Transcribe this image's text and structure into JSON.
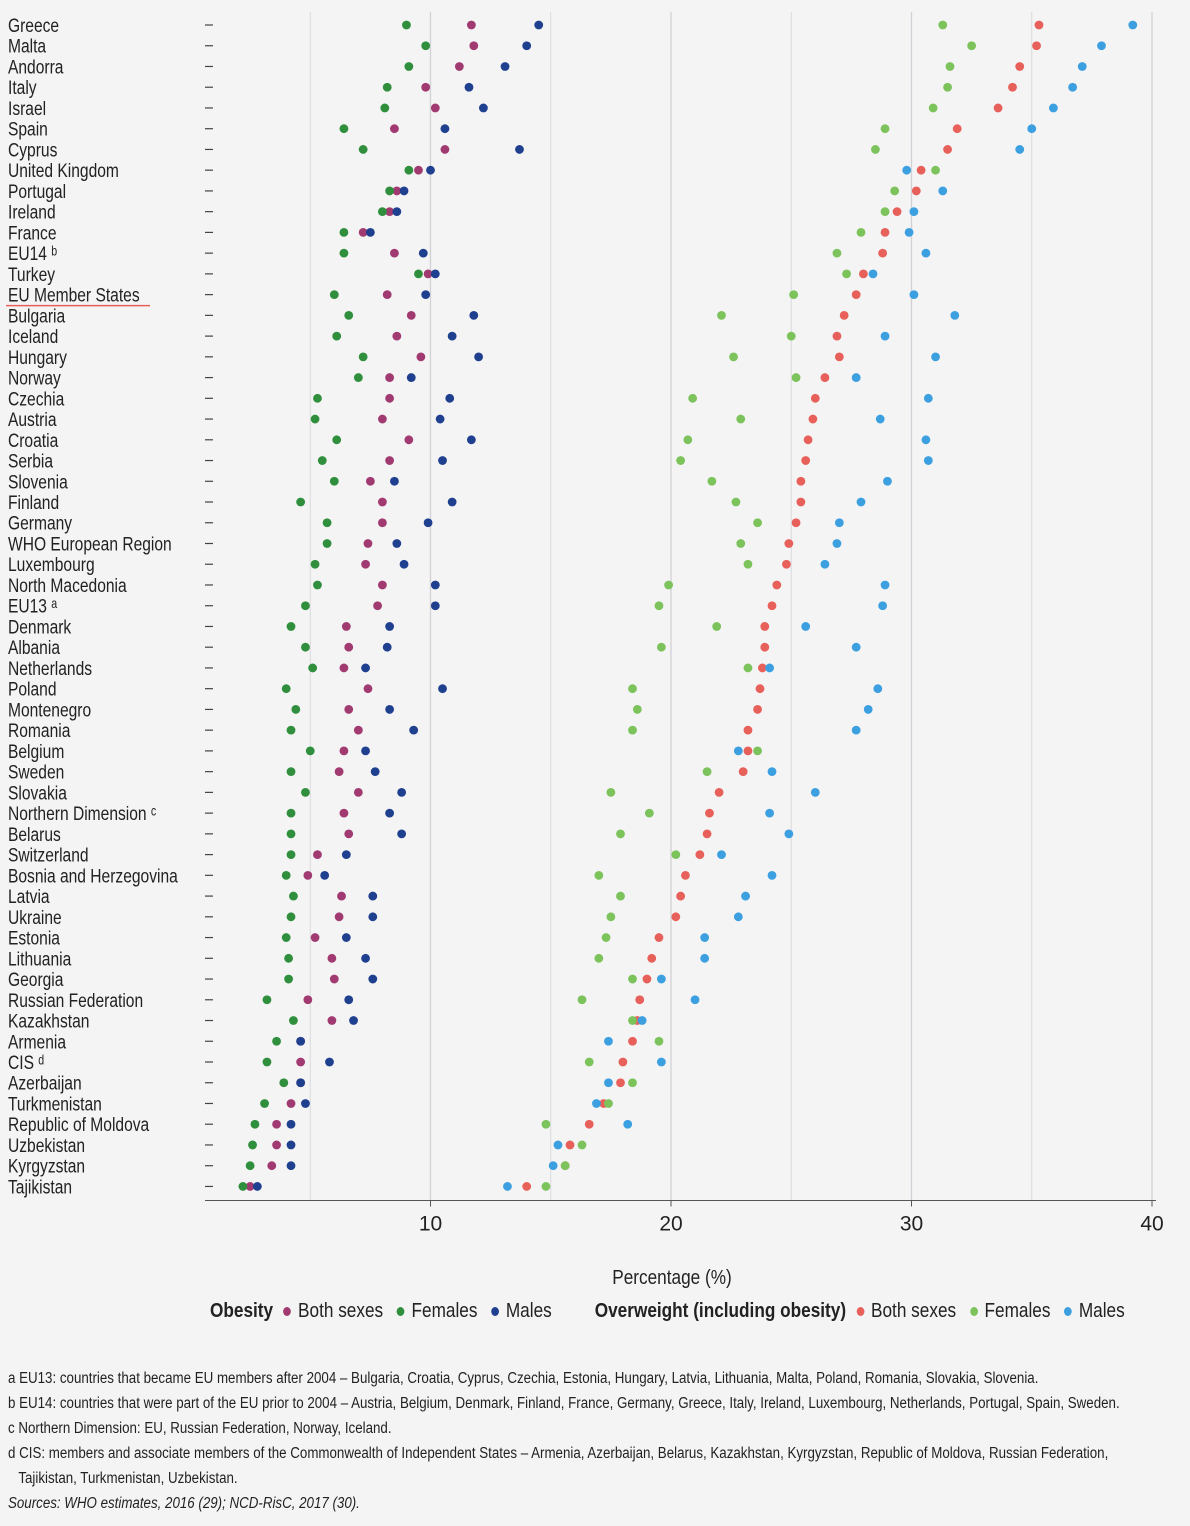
{
  "chart_data": {
    "type": "scatter",
    "xlabel": "Percentage (%)",
    "xlim": [
      0,
      40
    ],
    "xticks": [
      10,
      20,
      30,
      40
    ],
    "grid": true,
    "legend_position": "bottom",
    "countries": [
      "Greece",
      "Malta",
      "Andorra",
      "Italy",
      "Israel",
      "Spain",
      "Cyprus",
      "United Kingdom",
      "Portugal",
      "Ireland",
      "France",
      "EU14 ᵇ",
      "Turkey",
      "EU Member States",
      "Bulgaria",
      "Iceland",
      "Hungary",
      "Norway",
      "Czechia",
      "Austria",
      "Croatia",
      "Serbia",
      "Slovenia",
      "Finland",
      "Germany",
      "WHO European Region",
      "Luxembourg",
      "North Macedonia",
      "EU13 ᵃ",
      "Denmark",
      "Albania",
      "Netherlands",
      "Poland",
      "Montenegro",
      "Romania",
      "Belgium",
      "Sweden",
      "Slovakia",
      "Northern Dimension ᶜ",
      "Belarus",
      "Switzerland",
      "Bosnia and Herzegovina",
      "Latvia",
      "Ukraine",
      "Estonia",
      "Lithuania",
      "Georgia",
      "Russian Federation",
      "Kazakhstan",
      "Armenia",
      "CIS ᵈ",
      "Azerbaijan",
      "Turkmenistan",
      "Republic of Moldova",
      "Uzbekistan",
      "Kyrgyzstan",
      "Tajikistan"
    ],
    "highlighted_country": "EU Member States",
    "series": [
      {
        "group": "Obesity",
        "name": "Both sexes",
        "color": "#a23a72",
        "values": [
          11.7,
          11.8,
          11.2,
          9.8,
          10.2,
          8.5,
          10.6,
          9.5,
          8.6,
          8.3,
          7.2,
          8.5,
          9.9,
          8.2,
          9.2,
          8.6,
          9.6,
          8.3,
          8.3,
          8.0,
          9.1,
          8.3,
          7.5,
          8.0,
          8.0,
          7.4,
          7.3,
          8.0,
          7.8,
          6.5,
          6.6,
          6.4,
          7.4,
          6.6,
          7.0,
          6.4,
          6.2,
          7.0,
          6.4,
          6.6,
          5.3,
          4.9,
          6.3,
          6.2,
          5.2,
          5.9,
          6.0,
          4.9,
          5.9,
          4.6,
          4.6,
          4.6,
          4.2,
          3.6,
          3.6,
          3.4,
          2.5
        ]
      },
      {
        "group": "Obesity",
        "name": "Females",
        "color": "#2f8f3c",
        "values": [
          9.0,
          9.8,
          9.1,
          8.2,
          8.1,
          6.4,
          7.2,
          9.1,
          8.3,
          8.0,
          6.4,
          6.4,
          9.5,
          6.0,
          6.6,
          6.1,
          7.2,
          7.0,
          5.3,
          5.2,
          6.1,
          5.5,
          6.0,
          4.6,
          5.7,
          5.7,
          5.2,
          5.3,
          4.8,
          4.2,
          4.8,
          5.1,
          4.0,
          4.4,
          4.2,
          5.0,
          4.2,
          4.8,
          4.2,
          4.2,
          4.2,
          4.0,
          4.3,
          4.2,
          4.0,
          4.1,
          4.1,
          3.2,
          4.3,
          3.6,
          3.2,
          3.9,
          3.1,
          2.7,
          2.6,
          2.5,
          2.2
        ]
      },
      {
        "group": "Obesity",
        "name": "Males",
        "color": "#1f3f8f",
        "values": [
          14.5,
          14.0,
          13.1,
          11.6,
          12.2,
          10.6,
          13.7,
          10.0,
          8.9,
          8.6,
          7.5,
          9.7,
          10.2,
          9.8,
          11.8,
          10.9,
          12.0,
          9.2,
          10.8,
          10.4,
          11.7,
          10.5,
          8.5,
          10.9,
          9.9,
          8.6,
          8.9,
          10.2,
          10.2,
          8.3,
          8.2,
          7.3,
          10.5,
          8.3,
          9.3,
          7.3,
          7.7,
          8.8,
          8.3,
          8.8,
          6.5,
          5.6,
          7.6,
          7.6,
          6.5,
          7.3,
          7.6,
          6.6,
          6.8,
          4.6,
          5.8,
          4.6,
          4.8,
          4.2,
          4.2,
          4.2,
          2.8
        ]
      },
      {
        "group": "Overweight (including obesity)",
        "name": "Both sexes",
        "color": "#e8605a",
        "values": [
          35.3,
          35.2,
          34.5,
          34.2,
          33.6,
          31.9,
          31.5,
          30.4,
          30.2,
          29.4,
          28.9,
          28.8,
          28.0,
          27.7,
          27.2,
          26.9,
          27.0,
          26.4,
          26.0,
          25.9,
          25.7,
          25.6,
          25.4,
          25.4,
          25.2,
          24.9,
          24.8,
          24.4,
          24.2,
          23.9,
          23.9,
          23.8,
          23.7,
          23.6,
          23.2,
          23.2,
          23.0,
          22.0,
          21.6,
          21.5,
          21.2,
          20.6,
          20.4,
          20.2,
          19.5,
          19.2,
          19.0,
          18.7,
          18.6,
          18.4,
          18.0,
          17.9,
          17.2,
          16.6,
          15.8,
          15.6,
          14.0
        ]
      },
      {
        "group": "Overweight (including obesity)",
        "name": "Females",
        "color": "#7cc35c",
        "values": [
          31.3,
          32.5,
          31.6,
          31.5,
          30.9,
          28.9,
          28.5,
          31.0,
          29.3,
          28.9,
          27.9,
          26.9,
          27.3,
          25.1,
          22.1,
          25.0,
          22.6,
          25.2,
          20.9,
          22.9,
          20.7,
          20.4,
          21.7,
          22.7,
          23.6,
          22.9,
          23.2,
          19.9,
          19.5,
          21.9,
          19.6,
          23.2,
          18.4,
          18.6,
          18.4,
          23.6,
          21.5,
          17.5,
          19.1,
          17.9,
          20.2,
          17.0,
          17.9,
          17.5,
          17.3,
          17.0,
          18.4,
          16.3,
          18.4,
          19.5,
          16.6,
          18.4,
          17.4,
          14.8,
          16.3,
          15.6,
          14.8
        ]
      },
      {
        "group": "Overweight (including obesity)",
        "name": "Males",
        "color": "#3ca0e0",
        "values": [
          39.2,
          37.9,
          37.1,
          36.7,
          35.9,
          35.0,
          34.5,
          29.8,
          31.3,
          30.1,
          29.9,
          30.6,
          28.4,
          30.1,
          31.8,
          28.9,
          31.0,
          27.7,
          30.7,
          28.7,
          30.6,
          30.7,
          29.0,
          27.9,
          27.0,
          26.9,
          26.4,
          28.9,
          28.8,
          25.6,
          27.7,
          24.1,
          28.6,
          28.2,
          27.7,
          22.8,
          24.2,
          26.0,
          24.1,
          24.9,
          22.1,
          24.2,
          23.1,
          22.8,
          21.4,
          21.4,
          19.6,
          21.0,
          18.8,
          17.4,
          19.6,
          17.4,
          16.9,
          18.2,
          15.3,
          15.1,
          13.2
        ]
      }
    ]
  },
  "legend": {
    "obesity_title": "Obesity",
    "overweight_title": "Overweight (including obesity)",
    "both_sexes": "Both sexes",
    "females": "Females",
    "males": "Males"
  },
  "notes": {
    "a": "a EU13: countries that became EU members after 2004 – Bulgaria, Croatia, Cyprus, Czechia, Estonia, Hungary, Latvia, Lithuania, Malta, Poland, Romania, Slovakia, Slovenia.",
    "b": "b EU14: countries that were part of the EU prior to 2004 – Austria, Belgium, Denmark, Finland, France, Germany, Greece, Italy, Ireland, Luxembourg, Netherlands, Portugal, Spain, Sweden.",
    "c": "c Northern Dimension: EU, Russian Federation, Norway, Iceland.",
    "d1": "d CIS: members and associate members of the Commonwealth of Independent States – Armenia, Azerbaijan, Belarus, Kazakhstan, Kyrgyzstan, Republic of Moldova, Russian Federation,",
    "d2": "Tajikistan, Turkmenistan, Uzbekistan.",
    "sources": "Sources: WHO estimates, 2016 (29); NCD-RisC, 2017 (30)."
  }
}
